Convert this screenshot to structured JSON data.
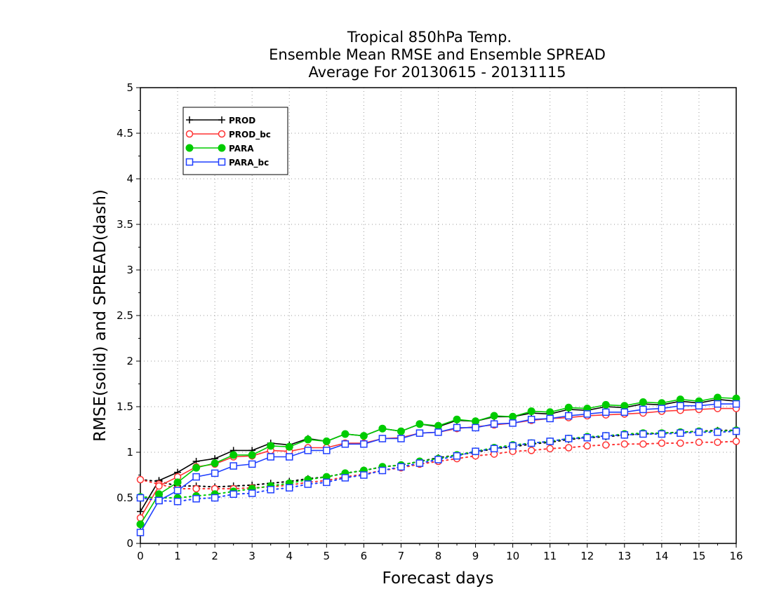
{
  "chart_data": {
    "type": "line",
    "title_lines": [
      "Tropical 850hPa Temp.",
      "Ensemble Mean RMSE and Ensemble SPREAD",
      "Average For 20130615 - 20131115"
    ],
    "xlabel": "Forecast days",
    "ylabel": "RMSE(solid) and SPREAD(dash)",
    "xlim": [
      0,
      16
    ],
    "ylim": [
      0,
      5
    ],
    "x_ticks": [
      "0",
      "1",
      "2",
      "3",
      "4",
      "5",
      "6",
      "7",
      "8",
      "9",
      "10",
      "11",
      "12",
      "13",
      "14",
      "15",
      "16"
    ],
    "y_ticks": [
      "0",
      "0.5",
      "1",
      "1.5",
      "2",
      "2.5",
      "3",
      "3.5",
      "4",
      "4.5",
      "5"
    ],
    "grid": true,
    "legend_position": "top-left",
    "x": [
      0,
      0.5,
      1,
      1.5,
      2,
      2.5,
      3,
      3.5,
      4,
      4.5,
      5,
      5.5,
      6,
      6.5,
      7,
      7.5,
      8,
      8.5,
      9,
      9.5,
      10,
      10.5,
      11,
      11.5,
      12,
      12.5,
      13,
      13.5,
      14,
      14.5,
      15,
      15.5,
      16
    ],
    "series": [
      {
        "name": "PROD",
        "color": "#000000",
        "marker": "plus",
        "rmse": [
          0.35,
          0.69,
          0.78,
          0.9,
          0.93,
          1.02,
          1.02,
          1.1,
          1.08,
          1.15,
          1.12,
          1.2,
          1.18,
          1.26,
          1.23,
          1.31,
          1.28,
          1.35,
          1.34,
          1.39,
          1.39,
          1.43,
          1.42,
          1.47,
          1.46,
          1.5,
          1.49,
          1.53,
          1.52,
          1.56,
          1.54,
          1.58,
          1.56
        ],
        "spread": [
          0.7,
          0.68,
          0.63,
          0.63,
          0.62,
          0.63,
          0.64,
          0.66,
          0.68,
          0.71,
          0.73,
          0.77,
          0.8,
          0.84,
          0.86,
          0.9,
          0.94,
          0.97,
          1.0,
          1.04,
          1.06,
          1.09,
          1.11,
          1.14,
          1.16,
          1.17,
          1.19,
          1.2,
          1.21,
          1.22,
          1.23,
          1.24,
          1.24
        ]
      },
      {
        "name": "PROD_bc",
        "color": "#ff3333",
        "marker": "open-circle",
        "rmse": [
          0.28,
          0.63,
          0.73,
          0.84,
          0.87,
          0.95,
          0.96,
          1.02,
          1.01,
          1.05,
          1.05,
          1.1,
          1.1,
          1.15,
          1.16,
          1.21,
          1.22,
          1.26,
          1.28,
          1.3,
          1.32,
          1.35,
          1.37,
          1.38,
          1.4,
          1.41,
          1.42,
          1.43,
          1.45,
          1.46,
          1.47,
          1.48,
          1.48
        ],
        "spread": [
          0.7,
          0.65,
          0.6,
          0.6,
          0.6,
          0.6,
          0.61,
          0.62,
          0.64,
          0.67,
          0.69,
          0.73,
          0.76,
          0.8,
          0.83,
          0.87,
          0.9,
          0.93,
          0.96,
          0.98,
          1.01,
          1.02,
          1.04,
          1.05,
          1.07,
          1.08,
          1.09,
          1.09,
          1.1,
          1.1,
          1.11,
          1.11,
          1.12
        ]
      },
      {
        "name": "PARA",
        "color": "#00cc00",
        "marker": "filled-circle",
        "rmse": [
          0.21,
          0.54,
          0.67,
          0.83,
          0.88,
          0.97,
          0.97,
          1.07,
          1.06,
          1.14,
          1.12,
          1.2,
          1.18,
          1.26,
          1.23,
          1.31,
          1.29,
          1.36,
          1.34,
          1.4,
          1.39,
          1.45,
          1.44,
          1.49,
          1.48,
          1.52,
          1.51,
          1.55,
          1.54,
          1.58,
          1.56,
          1.6,
          1.59
        ],
        "spread": [
          0.51,
          0.5,
          0.5,
          0.52,
          0.54,
          0.57,
          0.6,
          0.63,
          0.66,
          0.7,
          0.73,
          0.77,
          0.8,
          0.84,
          0.86,
          0.9,
          0.93,
          0.97,
          1.01,
          1.05,
          1.08,
          1.1,
          1.12,
          1.15,
          1.17,
          1.18,
          1.2,
          1.21,
          1.21,
          1.22,
          1.23,
          1.23,
          1.24
        ]
      },
      {
        "name": "PARA_bc",
        "color": "#1f3fff",
        "marker": "open-square",
        "rmse": [
          0.12,
          0.47,
          0.58,
          0.73,
          0.77,
          0.85,
          0.87,
          0.95,
          0.95,
          1.02,
          1.02,
          1.09,
          1.09,
          1.15,
          1.15,
          1.21,
          1.22,
          1.27,
          1.27,
          1.31,
          1.32,
          1.36,
          1.37,
          1.4,
          1.42,
          1.44,
          1.44,
          1.47,
          1.48,
          1.51,
          1.51,
          1.53,
          1.53
        ],
        "spread": [
          0.5,
          0.47,
          0.46,
          0.49,
          0.5,
          0.54,
          0.55,
          0.59,
          0.61,
          0.65,
          0.67,
          0.72,
          0.75,
          0.8,
          0.84,
          0.88,
          0.92,
          0.96,
          1.01,
          1.04,
          1.07,
          1.1,
          1.12,
          1.15,
          1.16,
          1.18,
          1.19,
          1.2,
          1.2,
          1.21,
          1.22,
          1.22,
          1.23
        ]
      }
    ]
  }
}
